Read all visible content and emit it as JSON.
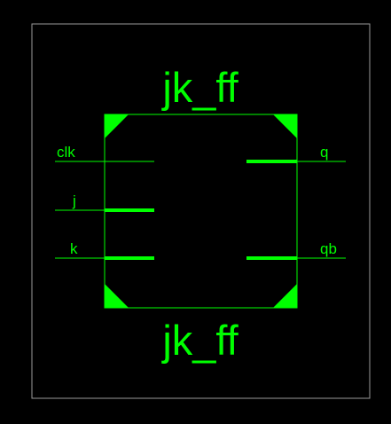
{
  "symbol": {
    "name_top": "jk_ff",
    "name_bottom": "jk_ff"
  },
  "pins": {
    "clk": "clk",
    "j": "j",
    "k": "k",
    "q": "q",
    "qb": "qb"
  },
  "colors": {
    "background": "#000000",
    "symbol_green": "#00ff00",
    "frame_gray": "#9a9a9a"
  }
}
